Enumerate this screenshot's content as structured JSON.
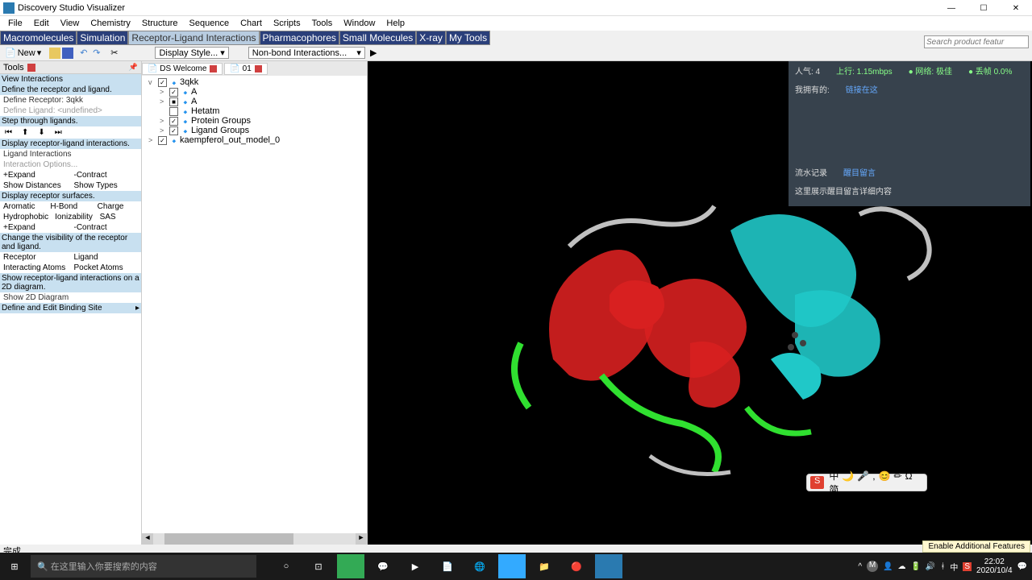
{
  "title": "Discovery Studio Visualizer",
  "menu": [
    "File",
    "Edit",
    "View",
    "Chemistry",
    "Structure",
    "Sequence",
    "Chart",
    "Scripts",
    "Tools",
    "Window",
    "Help"
  ],
  "modules": [
    {
      "t": "Macromolecules",
      "c": "dark"
    },
    {
      "t": "Simulation",
      "c": "dark"
    },
    {
      "t": "Receptor-Ligand Interactions",
      "c": "light"
    },
    {
      "t": "Pharmacophores",
      "c": "dark"
    },
    {
      "t": "Small Molecules",
      "c": "dark"
    },
    {
      "t": "X-ray",
      "c": "dark"
    },
    {
      "t": "My Tools",
      "c": "dark"
    }
  ],
  "toolbar": {
    "new": "New",
    "display": "Display Style...",
    "nonbond": "Non-bond Interactions..."
  },
  "search_placeholder": "Search product featur",
  "tools_label": "Tools",
  "panel": {
    "s1": "View Interactions",
    "s2": "Define the receptor and ligand.",
    "p1": "Define Receptor: 3qkk",
    "p2": "Define Ligand: <undefined>",
    "s3": "Step through ligands.",
    "s4": "Display receptor-ligand interactions.",
    "p3": "Ligand Interactions",
    "p4": "Interaction Options...",
    "p5": "+Expand",
    "p5b": "-Contract",
    "p6": "Show Distances",
    "p6b": "Show Types",
    "s5": "Display receptor surfaces.",
    "p7": "Aromatic",
    "p7b": "H-Bond",
    "p7c": "Charge",
    "p8": "Hydrophobic",
    "p8b": "Ionizability",
    "p8c": "SAS",
    "p9": "+Expand",
    "p9b": "-Contract",
    "s6": "Change the visibility of the receptor and ligand.",
    "p10": "Receptor",
    "p10b": "Ligand",
    "p11": "Interacting Atoms",
    "p11b": "Pocket Atoms",
    "s7": "Show receptor-ligand interactions on a 2D diagram.",
    "p12": "Show 2D Diagram",
    "s8": "Define and Edit Binding Site"
  },
  "tabs": [
    {
      "label": "DS Welcome"
    },
    {
      "label": "01"
    }
  ],
  "tree": [
    {
      "ind": 0,
      "exp": "v",
      "cb": "✓",
      "label": "3qkk"
    },
    {
      "ind": 1,
      "exp": ">",
      "cb": "✓",
      "label": "A"
    },
    {
      "ind": 1,
      "exp": ">",
      "cb": "■",
      "label": "A"
    },
    {
      "ind": 1,
      "exp": "",
      "cb": "",
      "label": "Hetatm"
    },
    {
      "ind": 1,
      "exp": ">",
      "cb": "✓",
      "label": "Protein Groups"
    },
    {
      "ind": 1,
      "exp": ">",
      "cb": "✓",
      "label": "Ligand Groups"
    },
    {
      "ind": 0,
      "exp": ">",
      "cb": "✓",
      "label": "kaempferol_out_model_0"
    }
  ],
  "overlay": {
    "r1a": "人气: 4",
    "r1b": "上行: 1.15mbps",
    "r1c": "● 网络: 极佳",
    "r1d": "● 丢帧 0.0%",
    "r2": "我拥有的:",
    "r3": "流水记录",
    "r3b": "醒目留言",
    "r4": "这里展示醒目留言详细内容"
  },
  "ime": {
    "s": "S",
    "chars": [
      "中",
      "🌙",
      "🎤",
      ",",
      "😊",
      "✏",
      "Ω",
      "简"
    ]
  },
  "status": "完成",
  "enable": "Enable Additional Features",
  "taskbar": {
    "search": "在这里输入你要搜索的内容",
    "time": "22:02",
    "date": "2020/10/4",
    "lang": "中"
  },
  "colors": {
    "red": "#d82020",
    "cyan": "#20c8c8",
    "green": "#30e030",
    "gray": "#c0c0c0",
    "dark": "#404040"
  }
}
